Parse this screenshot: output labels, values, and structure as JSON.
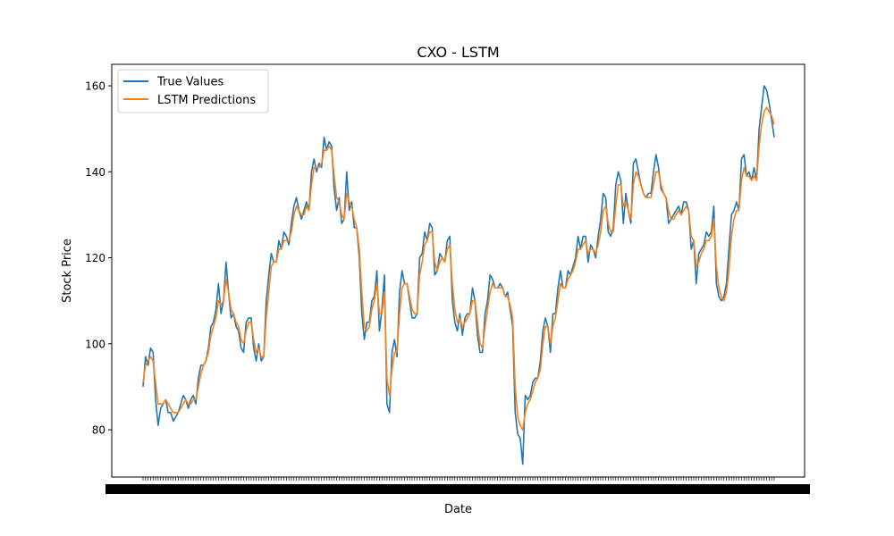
{
  "chart_data": {
    "type": "line",
    "title": "CXO - LSTM",
    "xlabel": "Date",
    "ylabel": "Stock Price",
    "ylim": [
      69,
      165
    ],
    "yticks": [
      80,
      100,
      120,
      140,
      160
    ],
    "grid": false,
    "legend_position": "top-left",
    "x_ticks": "dense, overlapping date labels (one per trading day)",
    "series": [
      {
        "name": "True Values",
        "color": "#1f77b4",
        "values": [
          90,
          97,
          95,
          99,
          98,
          87,
          81,
          85,
          86,
          87,
          84,
          84,
          82,
          83,
          84,
          86,
          88,
          87,
          85,
          87,
          88,
          86,
          92,
          95,
          95,
          96,
          99,
          104,
          105,
          108,
          114,
          107,
          110,
          119,
          112,
          106,
          107,
          104,
          103,
          99,
          98,
          105,
          106,
          106,
          99,
          96,
          100,
          96,
          97,
          110,
          116,
          121,
          119,
          119,
          124,
          122,
          126,
          125,
          123,
          128,
          132,
          134,
          131,
          129,
          131,
          133,
          131,
          140,
          143,
          140,
          142,
          141,
          148,
          145,
          147,
          146,
          136,
          131,
          134,
          128,
          129,
          140,
          131,
          133,
          127,
          127,
          120,
          107,
          101,
          105,
          105,
          110,
          111,
          117,
          103,
          108,
          116,
          86,
          84,
          98,
          101,
          97,
          112,
          117,
          114,
          114,
          110,
          106,
          106,
          107,
          120,
          121,
          126,
          124,
          128,
          127,
          116,
          117,
          121,
          120,
          119,
          124,
          125,
          110,
          105,
          103,
          107,
          102,
          106,
          107,
          107,
          113,
          110,
          102,
          98,
          98,
          107,
          110,
          116,
          115,
          113,
          113,
          114,
          113,
          111,
          112,
          108,
          104,
          84,
          79,
          78,
          72,
          88,
          87,
          88,
          91,
          92,
          92,
          96,
          103,
          106,
          104,
          98,
          107,
          107,
          113,
          117,
          113,
          113,
          117,
          116,
          118,
          120,
          125,
          122,
          125,
          125,
          119,
          123,
          122,
          120,
          125,
          129,
          135,
          134,
          126,
          125,
          127,
          137,
          140,
          138,
          128,
          135,
          131,
          128,
          142,
          143,
          140,
          137,
          135,
          134,
          135,
          135,
          140,
          144,
          141,
          136,
          135,
          134,
          128,
          129,
          130,
          131,
          132,
          130,
          133,
          133,
          131,
          122,
          124,
          114,
          121,
          122,
          123,
          126,
          125,
          126,
          132,
          114,
          111,
          110,
          111,
          114,
          122,
          130,
          131,
          133,
          131,
          143,
          144,
          139,
          140,
          138,
          141,
          138,
          150,
          155,
          160,
          159,
          156,
          152,
          148
        ]
      },
      {
        "name": "LSTM Predictions",
        "color": "#ff7f0e",
        "values": [
          91,
          95,
          96,
          97,
          96,
          91,
          86,
          86,
          86,
          87,
          86,
          85,
          84,
          84,
          84,
          85,
          86,
          87,
          86,
          86,
          87,
          87,
          90,
          93,
          95,
          96,
          98,
          102,
          104,
          106,
          110,
          109,
          110,
          115,
          112,
          108,
          107,
          105,
          104,
          101,
          100,
          103,
          105,
          105,
          101,
          98,
          99,
          97,
          97,
          106,
          112,
          118,
          119,
          119,
          122,
          122,
          124,
          124,
          124,
          126,
          130,
          132,
          131,
          130,
          130,
          132,
          131,
          137,
          141,
          141,
          141,
          142,
          145,
          145,
          146,
          145,
          139,
          134,
          133,
          130,
          129,
          135,
          133,
          132,
          129,
          127,
          122,
          112,
          104,
          103,
          104,
          108,
          110,
          114,
          107,
          107,
          112,
          92,
          88,
          94,
          98,
          98,
          107,
          113,
          114,
          114,
          111,
          108,
          107,
          107,
          116,
          119,
          123,
          124,
          126,
          126,
          119,
          117,
          119,
          120,
          119,
          122,
          123,
          114,
          108,
          105,
          106,
          104,
          105,
          106,
          107,
          110,
          110,
          105,
          100,
          99,
          104,
          108,
          112,
          114,
          113,
          113,
          113,
          113,
          111,
          111,
          109,
          106,
          90,
          83,
          81,
          80,
          84,
          86,
          87,
          89,
          91,
          92,
          94,
          100,
          104,
          104,
          100,
          104,
          106,
          110,
          114,
          113,
          113,
          115,
          116,
          117,
          119,
          122,
          122,
          123,
          124,
          121,
          122,
          122,
          121,
          123,
          126,
          131,
          132,
          128,
          126,
          126,
          132,
          137,
          137,
          132,
          133,
          131,
          129,
          137,
          140,
          139,
          137,
          135,
          134,
          134,
          134,
          137,
          140,
          140,
          137,
          135,
          134,
          131,
          129,
          129,
          130,
          131,
          130,
          131,
          132,
          131,
          125,
          124,
          118,
          119,
          121,
          122,
          124,
          124,
          125,
          129,
          118,
          113,
          111,
          110,
          112,
          117,
          125,
          129,
          131,
          131,
          138,
          141,
          139,
          139,
          138,
          139,
          138,
          146,
          151,
          154,
          155,
          154,
          153,
          151
        ]
      }
    ]
  }
}
